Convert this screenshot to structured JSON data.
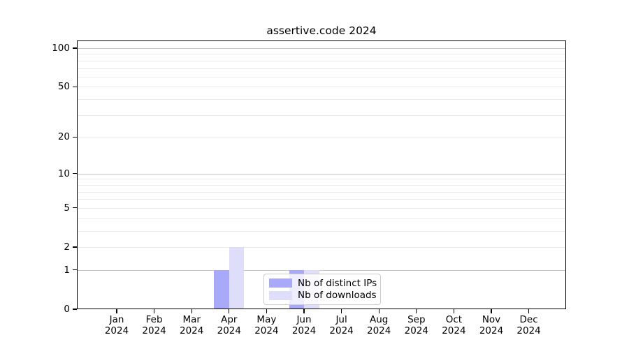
{
  "chart_data": {
    "type": "bar",
    "title": "assertive.code 2024",
    "categories": [
      "Jan",
      "Feb",
      "Mar",
      "Apr",
      "May",
      "Jun",
      "Jul",
      "Aug",
      "Sep",
      "Oct",
      "Nov",
      "Dec"
    ],
    "x_axis": {
      "year": "2024"
    },
    "series": [
      {
        "name": "Nb of distinct IPs",
        "slug": "nb-of-distinct-ips",
        "color": "#a9a9fa",
        "values": [
          0,
          0,
          0,
          1,
          0,
          1,
          0,
          0,
          0,
          0,
          0,
          0
        ]
      },
      {
        "name": "Nb of downloads",
        "slug": "nb-of-downloads",
        "color": "#dedefa",
        "values": [
          0,
          0,
          0,
          2,
          0,
          1,
          0,
          0,
          0,
          0,
          0,
          0
        ]
      }
    ],
    "y_axis": {
      "scale": "log10(1+y)",
      "range": [
        0,
        114
      ],
      "ticks": [
        0,
        1,
        2,
        5,
        10,
        20,
        50,
        100
      ],
      "decades": [
        1,
        10,
        100
      ],
      "minor_gridlines": [
        3,
        4,
        6,
        7,
        8,
        9,
        30,
        40,
        60,
        70,
        80,
        90
      ]
    },
    "grid": true,
    "legend_position": "inside-bottom-center",
    "colors": {
      "background": "#ffffff",
      "spine": "#000000",
      "major_grid": "#c4c4c4",
      "minor_grid": "#ebebeb",
      "legend_border": "#cccccc"
    }
  }
}
